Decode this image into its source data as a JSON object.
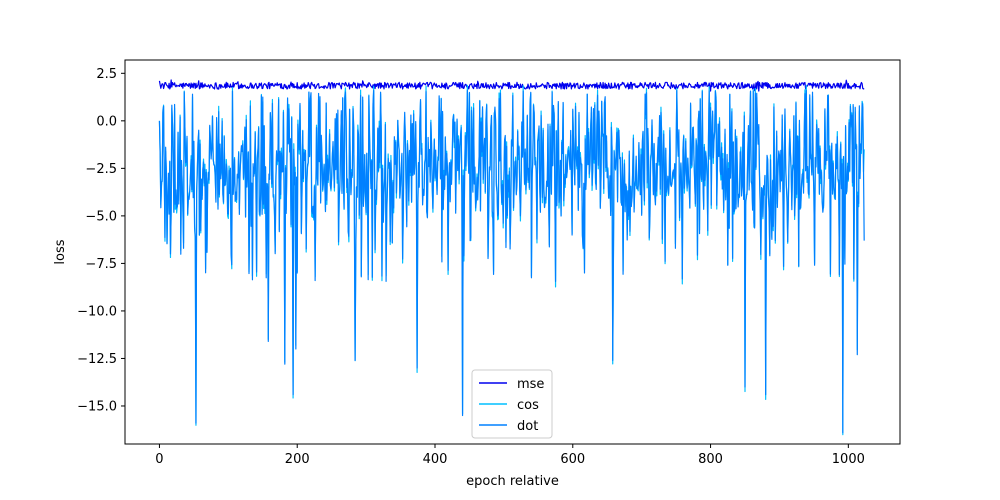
{
  "chart_data": {
    "type": "line",
    "title": "",
    "xlabel": "epoch relative",
    "ylabel": "loss",
    "xlim": [
      -50,
      1075
    ],
    "ylim": [
      -17.0,
      3.2
    ],
    "xticks": [
      0,
      200,
      400,
      600,
      800,
      1000
    ],
    "xtick_labels": [
      "0",
      "200",
      "400",
      "600",
      "800",
      "1000"
    ],
    "yticks": [
      2.5,
      0.0,
      -2.5,
      -5.0,
      -7.5,
      -10.0,
      -12.5,
      -15.0
    ],
    "ytick_labels": [
      "2.5",
      "0.0",
      "−2.5",
      "−5.0",
      "−7.5",
      "−10.0",
      "−12.5",
      "−15.0"
    ],
    "grid": false,
    "legend_position": "lower-center",
    "n_points": 1024,
    "series": [
      {
        "name": "mse",
        "color": "#0000ee",
        "behavior": "noisy band around 1.85, range about 1.55 to 2.2",
        "y_first": 2.1,
        "y_last": 1.7
      },
      {
        "name": "cos",
        "color": "#00bfff",
        "behavior": "mostly hidden beneath dot series",
        "y_first": 0.0,
        "y_last": -1.5
      },
      {
        "name": "dot",
        "color": "#0080ff",
        "behavior": "dense noisy oscillation mostly between -5 and 2, with downward spikes reaching about -16.4",
        "y_first": 0.0,
        "y_last": -6.3,
        "notable_minima": [
          {
            "x": 53,
            "y": -15.9
          },
          {
            "x": 158,
            "y": -11.6
          },
          {
            "x": 182,
            "y": -12.8
          },
          {
            "x": 194,
            "y": -14.4
          },
          {
            "x": 198,
            "y": -12.0
          },
          {
            "x": 284,
            "y": -12.6
          },
          {
            "x": 374,
            "y": -13.0
          },
          {
            "x": 440,
            "y": -15.5
          },
          {
            "x": 658,
            "y": -12.6
          },
          {
            "x": 850,
            "y": -14.0
          },
          {
            "x": 880,
            "y": -14.4
          },
          {
            "x": 992,
            "y": -16.4
          },
          {
            "x": 1013,
            "y": -12.3
          }
        ]
      }
    ]
  }
}
